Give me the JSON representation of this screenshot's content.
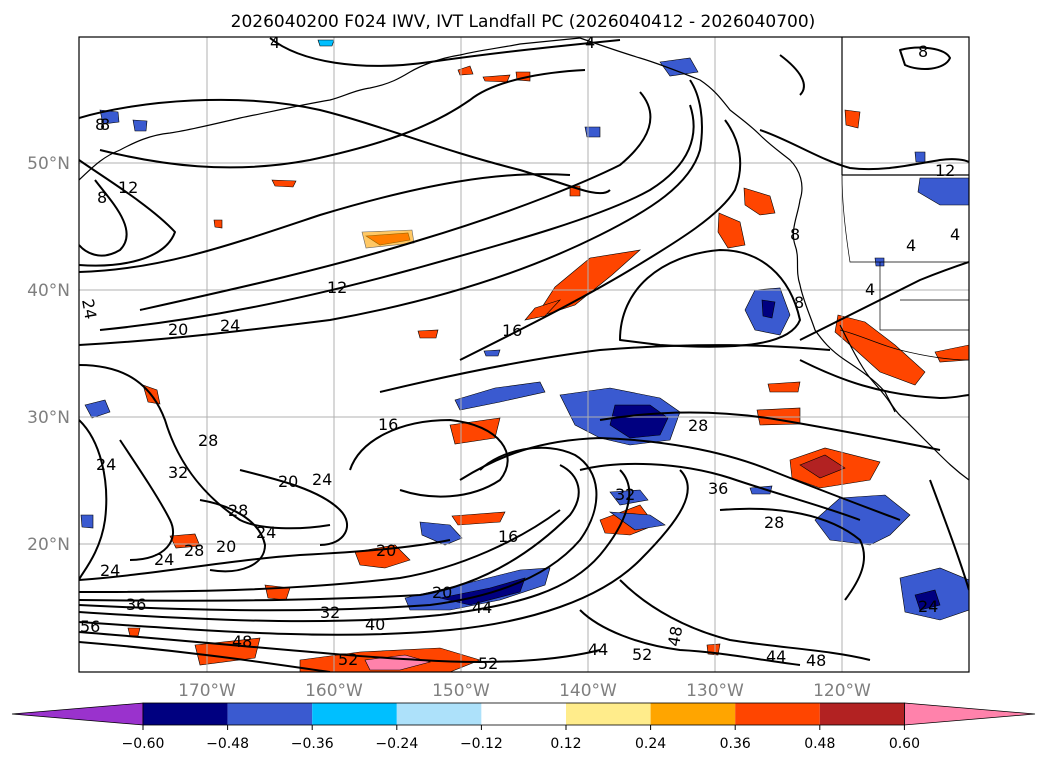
{
  "title": "2026040200 F024 IWV, IVT Landfall PC (2026040412 - 2026040700)",
  "map": {
    "lat_labels": [
      "50°N",
      "40°N",
      "30°N",
      "20°N"
    ],
    "lon_labels": [
      "170°W",
      "160°W",
      "150°W",
      "140°W",
      "130°W",
      "120°W"
    ]
  },
  "colorbar": {
    "colors": [
      "#9a32cd",
      "#000080",
      "#3a5ad0",
      "#00bfff",
      "#ade1fa",
      "#ffffff",
      "#ffec8b",
      "#ffa500",
      "#ff4500",
      "#b22222",
      "#ff82ab"
    ],
    "tick_labels": [
      "−0.60",
      "−0.48",
      "−0.36",
      "−0.24",
      "−0.12",
      "0.12",
      "0.24",
      "0.36",
      "0.48",
      "0.60"
    ],
    "extend": "both"
  },
  "contour_labels": [
    {
      "text": "4"
    },
    {
      "text": "8"
    },
    {
      "text": "12"
    },
    {
      "text": "8"
    },
    {
      "text": "8"
    },
    {
      "text": "12"
    },
    {
      "text": "24"
    },
    {
      "text": "20"
    },
    {
      "text": "24"
    },
    {
      "text": "16"
    },
    {
      "text": "16"
    },
    {
      "text": "28"
    },
    {
      "text": "32"
    },
    {
      "text": "24"
    },
    {
      "text": "20"
    },
    {
      "text": "24"
    },
    {
      "text": "28"
    },
    {
      "text": "24"
    },
    {
      "text": "20"
    },
    {
      "text": "28"
    },
    {
      "text": "24"
    },
    {
      "text": "24"
    },
    {
      "text": "20"
    },
    {
      "text": "16"
    },
    {
      "text": "20"
    },
    {
      "text": "44"
    },
    {
      "text": "36"
    },
    {
      "text": "32"
    },
    {
      "text": "40"
    },
    {
      "text": "48"
    },
    {
      "text": "52"
    },
    {
      "text": "56"
    },
    {
      "text": "52"
    },
    {
      "text": "44"
    },
    {
      "text": "52"
    },
    {
      "text": "48"
    },
    {
      "text": "44"
    },
    {
      "text": "48"
    },
    {
      "text": "32"
    },
    {
      "text": "36"
    },
    {
      "text": "28"
    },
    {
      "text": "28"
    },
    {
      "text": "24"
    },
    {
      "text": "8"
    },
    {
      "text": "12"
    },
    {
      "text": "8"
    },
    {
      "text": "4"
    },
    {
      "text": "8"
    },
    {
      "text": "4"
    },
    {
      "text": "4"
    },
    {
      "text": "4"
    }
  ]
}
